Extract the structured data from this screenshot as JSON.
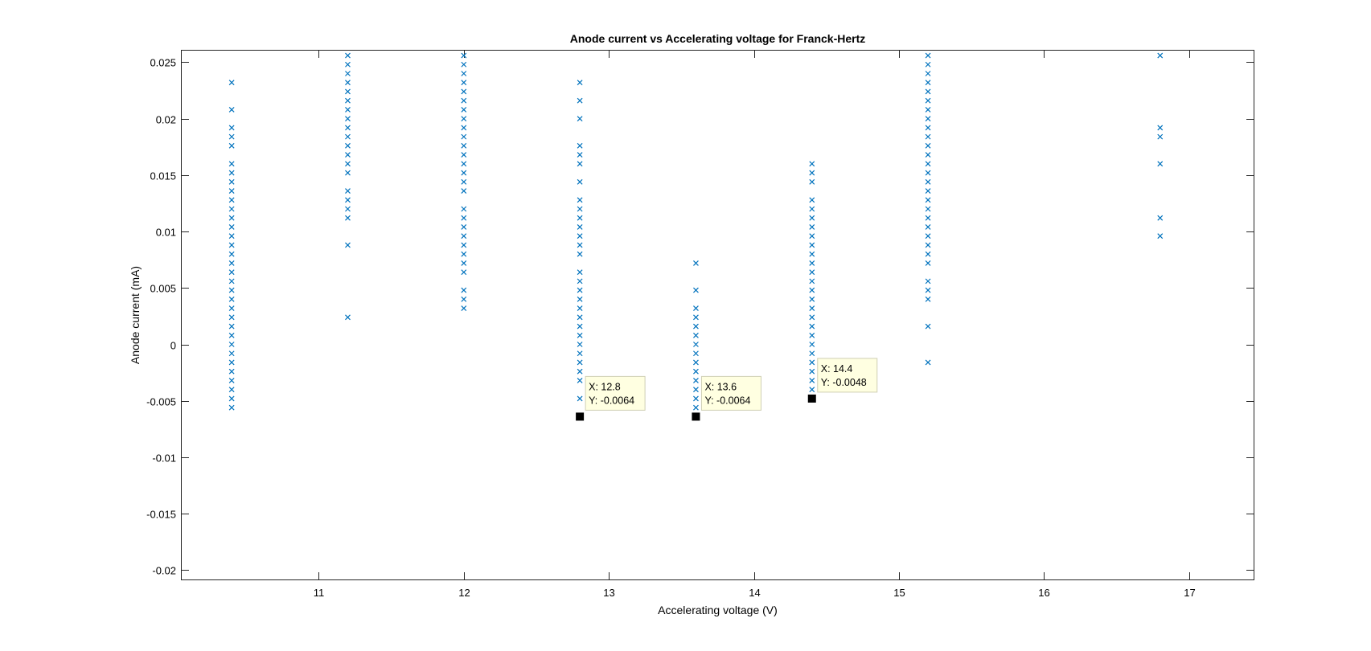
{
  "chart_data": {
    "type": "scatter",
    "title": "Anode current vs Accelerating voltage for Franck-Hertz",
    "xlabel": "Accelerating voltage (V)",
    "ylabel": "Anode current (mA)",
    "xlim": [
      10.05,
      17.45
    ],
    "ylim": [
      -0.0209,
      0.0261
    ],
    "xticks": [
      11,
      12,
      13,
      14,
      15,
      16,
      17
    ],
    "xtick_labels": [
      "11",
      "12",
      "13",
      "14",
      "15",
      "16",
      "17"
    ],
    "yticks": [
      -0.02,
      -0.015,
      -0.01,
      -0.005,
      0,
      0.005,
      0.01,
      0.015,
      0.02,
      0.025
    ],
    "ytick_labels": [
      "-0.02",
      "-0.015",
      "-0.01",
      "-0.005",
      "0",
      "0.005",
      "0.01",
      "0.015",
      "0.02",
      "0.025"
    ],
    "grid": false,
    "marker": "x",
    "color": "#0072BD",
    "series": [
      {
        "points": [
          [
            10.4,
            0.0232
          ],
          [
            10.4,
            0.0208
          ],
          [
            10.4,
            0.0192
          ],
          [
            10.4,
            0.0184
          ],
          [
            10.4,
            0.0176
          ],
          [
            10.4,
            0.016
          ],
          [
            10.4,
            0.0152
          ],
          [
            10.4,
            0.0144
          ],
          [
            10.4,
            0.0136
          ],
          [
            10.4,
            0.0128
          ],
          [
            10.4,
            0.012
          ],
          [
            10.4,
            0.0112
          ],
          [
            10.4,
            0.0104
          ],
          [
            10.4,
            0.0096
          ],
          [
            10.4,
            0.0088
          ],
          [
            10.4,
            0.008
          ],
          [
            10.4,
            0.0072
          ],
          [
            10.4,
            0.0064
          ],
          [
            10.4,
            0.0056
          ],
          [
            10.4,
            0.0048
          ],
          [
            10.4,
            0.004
          ],
          [
            10.4,
            0.0032
          ],
          [
            10.4,
            0.0024
          ],
          [
            10.4,
            0.0016
          ],
          [
            10.4,
            0.0008
          ],
          [
            10.4,
            0.0
          ],
          [
            10.4,
            -0.0008
          ],
          [
            10.4,
            -0.0016
          ],
          [
            10.4,
            -0.0024
          ],
          [
            10.4,
            -0.0032
          ],
          [
            10.4,
            -0.004
          ],
          [
            10.4,
            -0.0048
          ],
          [
            10.4,
            -0.0056
          ],
          [
            11.2,
            0.0256
          ],
          [
            11.2,
            0.0248
          ],
          [
            11.2,
            0.024
          ],
          [
            11.2,
            0.0232
          ],
          [
            11.2,
            0.0224
          ],
          [
            11.2,
            0.0216
          ],
          [
            11.2,
            0.0208
          ],
          [
            11.2,
            0.02
          ],
          [
            11.2,
            0.0192
          ],
          [
            11.2,
            0.0184
          ],
          [
            11.2,
            0.0176
          ],
          [
            11.2,
            0.0168
          ],
          [
            11.2,
            0.016
          ],
          [
            11.2,
            0.0152
          ],
          [
            11.2,
            0.0136
          ],
          [
            11.2,
            0.0128
          ],
          [
            11.2,
            0.012
          ],
          [
            11.2,
            0.0112
          ],
          [
            11.2,
            0.0088
          ],
          [
            11.2,
            0.0024
          ],
          [
            12.0,
            0.0256
          ],
          [
            12.0,
            0.0248
          ],
          [
            12.0,
            0.024
          ],
          [
            12.0,
            0.0232
          ],
          [
            12.0,
            0.0224
          ],
          [
            12.0,
            0.0216
          ],
          [
            12.0,
            0.0208
          ],
          [
            12.0,
            0.02
          ],
          [
            12.0,
            0.0192
          ],
          [
            12.0,
            0.0184
          ],
          [
            12.0,
            0.0176
          ],
          [
            12.0,
            0.0168
          ],
          [
            12.0,
            0.016
          ],
          [
            12.0,
            0.0152
          ],
          [
            12.0,
            0.0144
          ],
          [
            12.0,
            0.0136
          ],
          [
            12.0,
            0.012
          ],
          [
            12.0,
            0.0112
          ],
          [
            12.0,
            0.0104
          ],
          [
            12.0,
            0.0096
          ],
          [
            12.0,
            0.0088
          ],
          [
            12.0,
            0.008
          ],
          [
            12.0,
            0.0072
          ],
          [
            12.0,
            0.0064
          ],
          [
            12.0,
            0.0048
          ],
          [
            12.0,
            0.004
          ],
          [
            12.0,
            0.0032
          ],
          [
            12.8,
            0.0232
          ],
          [
            12.8,
            0.0216
          ],
          [
            12.8,
            0.02
          ],
          [
            12.8,
            0.0176
          ],
          [
            12.8,
            0.0168
          ],
          [
            12.8,
            0.016
          ],
          [
            12.8,
            0.0144
          ],
          [
            12.8,
            0.0128
          ],
          [
            12.8,
            0.012
          ],
          [
            12.8,
            0.0112
          ],
          [
            12.8,
            0.0104
          ],
          [
            12.8,
            0.0096
          ],
          [
            12.8,
            0.0088
          ],
          [
            12.8,
            0.008
          ],
          [
            12.8,
            0.0064
          ],
          [
            12.8,
            0.0056
          ],
          [
            12.8,
            0.0048
          ],
          [
            12.8,
            0.004
          ],
          [
            12.8,
            0.0032
          ],
          [
            12.8,
            0.0024
          ],
          [
            12.8,
            0.0016
          ],
          [
            12.8,
            0.0008
          ],
          [
            12.8,
            0.0
          ],
          [
            12.8,
            -0.0008
          ],
          [
            12.8,
            -0.0016
          ],
          [
            12.8,
            -0.0024
          ],
          [
            12.8,
            -0.0032
          ],
          [
            12.8,
            -0.0048
          ],
          [
            12.8,
            -0.0064
          ],
          [
            13.6,
            0.0072
          ],
          [
            13.6,
            0.0048
          ],
          [
            13.6,
            0.0032
          ],
          [
            13.6,
            0.0024
          ],
          [
            13.6,
            0.0016
          ],
          [
            13.6,
            0.0008
          ],
          [
            13.6,
            0.0
          ],
          [
            13.6,
            -0.0008
          ],
          [
            13.6,
            -0.0016
          ],
          [
            13.6,
            -0.0024
          ],
          [
            13.6,
            -0.0032
          ],
          [
            13.6,
            -0.004
          ],
          [
            13.6,
            -0.0048
          ],
          [
            13.6,
            -0.0056
          ],
          [
            13.6,
            -0.0064
          ],
          [
            14.4,
            0.016
          ],
          [
            14.4,
            0.0152
          ],
          [
            14.4,
            0.0144
          ],
          [
            14.4,
            0.0128
          ],
          [
            14.4,
            0.012
          ],
          [
            14.4,
            0.0112
          ],
          [
            14.4,
            0.0104
          ],
          [
            14.4,
            0.0096
          ],
          [
            14.4,
            0.0088
          ],
          [
            14.4,
            0.008
          ],
          [
            14.4,
            0.0072
          ],
          [
            14.4,
            0.0064
          ],
          [
            14.4,
            0.0056
          ],
          [
            14.4,
            0.0048
          ],
          [
            14.4,
            0.004
          ],
          [
            14.4,
            0.0032
          ],
          [
            14.4,
            0.0024
          ],
          [
            14.4,
            0.0016
          ],
          [
            14.4,
            0.0008
          ],
          [
            14.4,
            0.0
          ],
          [
            14.4,
            -0.0008
          ],
          [
            14.4,
            -0.0016
          ],
          [
            14.4,
            -0.0024
          ],
          [
            14.4,
            -0.0032
          ],
          [
            14.4,
            -0.004
          ],
          [
            14.4,
            -0.0048
          ],
          [
            15.2,
            0.0256
          ],
          [
            15.2,
            0.0248
          ],
          [
            15.2,
            0.024
          ],
          [
            15.2,
            0.0232
          ],
          [
            15.2,
            0.0224
          ],
          [
            15.2,
            0.0216
          ],
          [
            15.2,
            0.0208
          ],
          [
            15.2,
            0.02
          ],
          [
            15.2,
            0.0192
          ],
          [
            15.2,
            0.0184
          ],
          [
            15.2,
            0.0176
          ],
          [
            15.2,
            0.0168
          ],
          [
            15.2,
            0.016
          ],
          [
            15.2,
            0.0152
          ],
          [
            15.2,
            0.0144
          ],
          [
            15.2,
            0.0136
          ],
          [
            15.2,
            0.0128
          ],
          [
            15.2,
            0.012
          ],
          [
            15.2,
            0.0112
          ],
          [
            15.2,
            0.0104
          ],
          [
            15.2,
            0.0096
          ],
          [
            15.2,
            0.0088
          ],
          [
            15.2,
            0.008
          ],
          [
            15.2,
            0.0072
          ],
          [
            15.2,
            0.0056
          ],
          [
            15.2,
            0.0048
          ],
          [
            15.2,
            0.004
          ],
          [
            15.2,
            0.0016
          ],
          [
            15.2,
            -0.0016
          ],
          [
            16.8,
            0.0256
          ],
          [
            16.8,
            0.0192
          ],
          [
            16.8,
            0.0184
          ],
          [
            16.8,
            0.016
          ],
          [
            16.8,
            0.0112
          ],
          [
            16.8,
            0.0096
          ]
        ]
      }
    ],
    "datatips": [
      {
        "x": 12.8,
        "y": -0.0064,
        "x_text": "X: 12.8",
        "y_text": "Y: -0.0064"
      },
      {
        "x": 13.6,
        "y": -0.0064,
        "x_text": "X: 13.6",
        "y_text": "Y: -0.0064"
      },
      {
        "x": 14.4,
        "y": -0.0048,
        "x_text": "X: 14.4",
        "y_text": "Y: -0.0048"
      }
    ]
  }
}
